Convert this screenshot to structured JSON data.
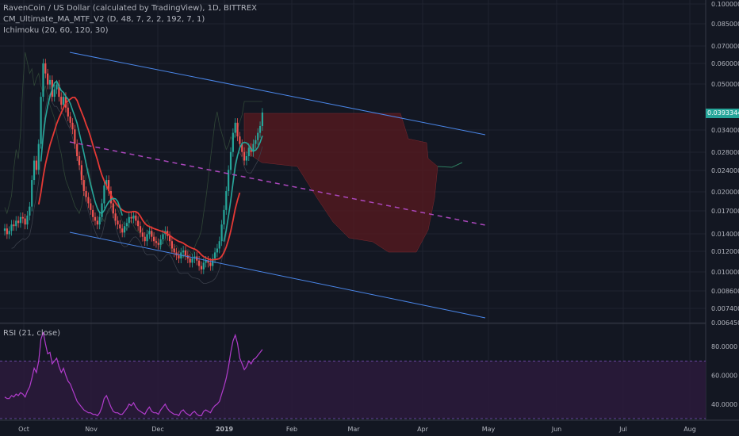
{
  "header": {
    "symbol_title": "RavenCoin / US Dollar (calculated by TradingView), 1D, BITTREX",
    "indicator_ma": "CM_Ultimate_MA_MTF_V2 (D, 48, 7, 2, 2, 192, 7, 1)",
    "indicator_ichimoku": "Ichimoku (20, 60, 120, 30)",
    "rsi_label": "RSI (21, close)"
  },
  "current_price": "0.03933447",
  "colors": {
    "background": "#131722",
    "grid": "#1f2330",
    "bull": "#26a69a",
    "bear": "#ef5350",
    "channel": "#4a86e8",
    "midline": "#ab47bc",
    "ma_red": "#e53935",
    "ma_green": "#26a69a",
    "cloud": "#5a1a1f",
    "rsi_line": "#b13ccc",
    "rsi_band": "#2a1a3a"
  },
  "chart_data": [
    {
      "type": "candlestick",
      "title": "RavenCoin / US Dollar (calculated by TradingView), 1D, BITTREX",
      "yscale": "log",
      "x_tick_labels": [
        "Oct",
        "Nov",
        "Dec",
        "2019",
        "Feb",
        "Mar",
        "Apr",
        "May",
        "Jun",
        "Jul",
        "Aug"
      ],
      "y_tick_labels": [
        "0.10000000",
        "0.08500000",
        "0.07000000",
        "0.06000000",
        "0.05000000",
        "0.03400000",
        "0.02800000",
        "0.02400000",
        "0.02000000",
        "0.01700000",
        "0.01400000",
        "0.01200000",
        "0.01000000",
        "0.00860000",
        "0.00740000",
        "0.00645000"
      ],
      "ylim": [
        0.00645,
        0.1
      ],
      "close_series": {
        "name": "RVN close",
        "values": [
          0.0145,
          0.0138,
          0.0142,
          0.015,
          0.0148,
          0.0155,
          0.0152,
          0.016,
          0.0158,
          0.015,
          0.0162,
          0.0175,
          0.022,
          0.026,
          0.024,
          0.03,
          0.045,
          0.06,
          0.055,
          0.05,
          0.052,
          0.045,
          0.048,
          0.05,
          0.045,
          0.042,
          0.045,
          0.041,
          0.038,
          0.036,
          0.034,
          0.03,
          0.027,
          0.025,
          0.022,
          0.02,
          0.019,
          0.018,
          0.017,
          0.016,
          0.0155,
          0.015,
          0.016,
          0.018,
          0.021,
          0.022,
          0.02,
          0.018,
          0.0165,
          0.0155,
          0.015,
          0.0145,
          0.014,
          0.0148,
          0.0152,
          0.016,
          0.0158,
          0.0162,
          0.0155,
          0.0148,
          0.014,
          0.0135,
          0.013,
          0.0138,
          0.0142,
          0.0135,
          0.013,
          0.0128,
          0.0126,
          0.0132,
          0.0138,
          0.0142,
          0.0136,
          0.013,
          0.0122,
          0.0118,
          0.0115,
          0.0112,
          0.0118,
          0.012,
          0.0115,
          0.0112,
          0.0108,
          0.0112,
          0.0114,
          0.011,
          0.0105,
          0.0102,
          0.0108,
          0.011,
          0.0108,
          0.0105,
          0.0112,
          0.0118,
          0.0122,
          0.013,
          0.015,
          0.017,
          0.02,
          0.024,
          0.028,
          0.033,
          0.036,
          0.032,
          0.03,
          0.028,
          0.026,
          0.027,
          0.029,
          0.028,
          0.03,
          0.031,
          0.033,
          0.035,
          0.0393
        ]
      },
      "lines": [
        {
          "name": "Ultimate MA (red)"
        },
        {
          "name": "Ultimate MA (green)"
        },
        {
          "name": "Ichimoku cloud"
        }
      ],
      "trend_channel": {
        "upper": {
          "start_date": "2018-10-19",
          "start": 0.0655,
          "end_date": "2019-04-30",
          "end": 0.031
        },
        "lower": {
          "start_date": "2018-10-19",
          "start": 0.0142,
          "end_date": "2019-04-30",
          "end": 0.0067
        },
        "middle": {
          "start_date": "2018-10-19",
          "start": 0.0305,
          "end_date": "2019-04-30",
          "end": 0.0145
        }
      }
    },
    {
      "type": "line",
      "title": "RSI (21, close)",
      "y_tick_labels": [
        "80.0000",
        "60.0000",
        "40.0000"
      ],
      "ylim": [
        30,
        95
      ],
      "band": [
        70,
        30
      ],
      "series": [
        {
          "name": "RSI",
          "values": [
            45,
            44,
            44,
            46,
            45,
            47,
            46,
            48,
            47,
            45,
            49,
            52,
            58,
            65,
            62,
            70,
            85,
            90,
            82,
            75,
            76,
            68,
            70,
            72,
            66,
            62,
            65,
            60,
            56,
            54,
            50,
            46,
            42,
            40,
            38,
            36,
            35,
            34,
            34,
            33,
            33,
            32,
            34,
            38,
            44,
            46,
            42,
            38,
            35,
            34,
            34,
            33,
            33,
            35,
            37,
            40,
            39,
            41,
            38,
            36,
            35,
            34,
            33,
            36,
            38,
            35,
            34,
            34,
            33,
            36,
            38,
            40,
            37,
            35,
            34,
            33,
            33,
            32,
            35,
            36,
            34,
            33,
            32,
            34,
            35,
            33,
            32,
            32,
            35,
            36,
            35,
            34,
            37,
            39,
            40,
            42,
            47,
            52,
            58,
            66,
            76,
            84,
            88,
            82,
            72,
            68,
            64,
            66,
            70,
            68,
            71,
            72,
            74,
            76,
            78
          ]
        }
      ]
    }
  ]
}
